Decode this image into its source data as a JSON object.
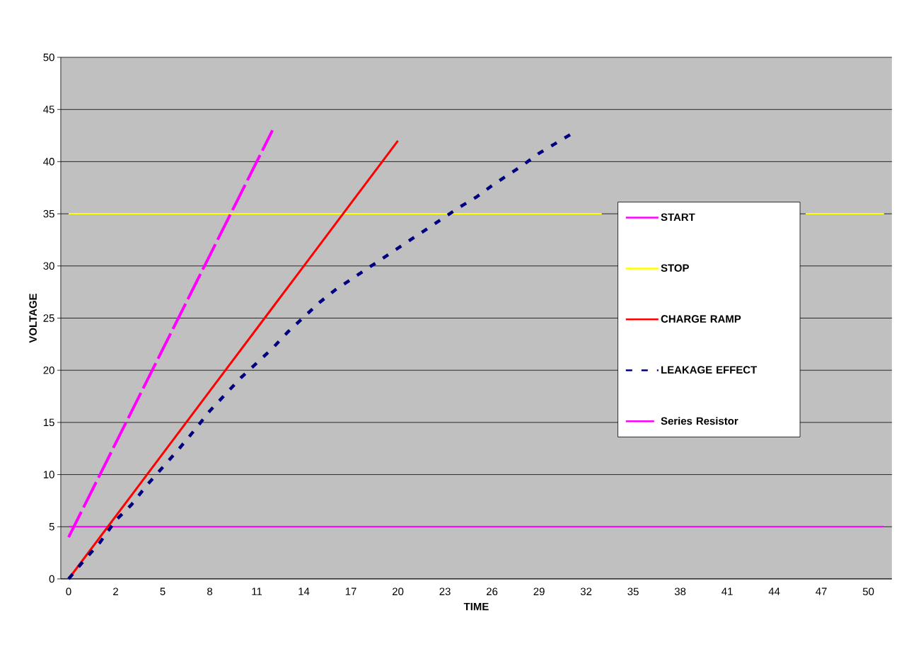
{
  "chart_data": {
    "type": "line",
    "xlabel": "TIME",
    "ylabel": "VOLTAGE",
    "categories": [
      "0",
      null,
      null,
      "2",
      null,
      null,
      "5",
      null,
      null,
      "8",
      null,
      null,
      "11",
      null,
      null,
      "14",
      null,
      null,
      "17",
      null,
      null,
      "20",
      null,
      null,
      "23",
      null,
      null,
      "26",
      null,
      null,
      "29",
      null,
      null,
      "32",
      null,
      null,
      "35",
      null,
      null,
      "38",
      null,
      null,
      "41",
      null,
      null,
      "44",
      null,
      null,
      "47",
      null,
      null,
      "50",
      null
    ],
    "ylim": [
      0,
      50
    ],
    "yticks": [
      0,
      5,
      10,
      15,
      20,
      25,
      30,
      35,
      40,
      45,
      50
    ],
    "grid": "y",
    "legend": "right",
    "marker": "none",
    "series": [
      {
        "name": "START",
        "color": "#ff00ff",
        "line_style": "solid",
        "values": [
          5,
          5,
          5,
          5,
          5,
          5,
          5,
          5,
          5,
          5,
          5,
          5,
          5,
          5,
          5,
          5,
          5,
          5,
          5,
          5,
          5,
          5,
          5,
          5,
          5,
          5,
          5,
          5,
          5,
          5,
          5,
          5,
          5,
          5,
          5,
          5,
          5,
          5,
          5,
          5,
          5,
          5,
          5,
          5,
          5,
          5,
          5,
          5,
          5,
          5,
          5,
          5,
          5
        ]
      },
      {
        "name": "STOP",
        "color": "#ffff00",
        "line_style": "solid",
        "values": [
          35,
          35,
          35,
          35,
          35,
          35,
          35,
          35,
          35,
          35,
          35,
          35,
          35,
          35,
          35,
          35,
          35,
          35,
          35,
          35,
          35,
          35,
          35,
          35,
          35,
          35,
          35,
          35,
          35,
          35,
          35,
          35,
          35,
          35,
          35,
          null,
          null,
          null,
          null,
          null,
          null,
          null,
          null,
          null,
          null,
          null,
          null,
          35,
          35,
          35,
          35,
          35,
          35
        ]
      },
      {
        "name": "CHARGE RAMP",
        "color": "#ff0000",
        "line_style": "solid",
        "values": [
          0,
          2,
          4,
          6,
          8,
          10,
          12,
          14,
          16,
          18,
          20,
          22,
          24,
          26,
          28,
          30,
          32,
          34,
          36,
          38,
          40,
          42,
          null,
          null,
          null,
          null,
          null,
          null,
          null,
          null,
          null,
          null,
          null,
          null,
          null,
          null,
          null,
          null,
          null,
          null,
          null,
          null,
          null,
          null,
          null,
          null,
          null,
          null,
          null,
          null,
          null,
          null,
          null
        ]
      },
      {
        "name": "LEAKAGE EFFECT",
        "color": "#000080",
        "line_style": "dotted",
        "values": [
          0,
          1.8,
          3.5,
          5.6,
          7.1,
          9.0,
          10.7,
          12.4,
          14.2,
          16.1,
          17.7,
          19.3,
          20.7,
          22.1,
          23.7,
          25.1,
          26.5,
          27.7,
          28.7,
          29.7,
          30.7,
          31.7,
          32.7,
          33.7,
          34.7,
          35.7,
          36.6,
          37.7,
          38.7,
          39.7,
          40.8,
          41.7,
          42.6,
          null,
          null,
          null,
          null,
          null,
          null,
          null,
          null,
          null,
          null,
          null,
          null,
          null,
          null,
          null,
          null,
          null,
          null,
          null,
          null
        ]
      },
      {
        "name": "Series Resistor",
        "color": "#ff00ff",
        "line_style": "dashed",
        "values": [
          4,
          7,
          10,
          13,
          16,
          19,
          22,
          25,
          28,
          31,
          34,
          37,
          40,
          43,
          null,
          null,
          null,
          null,
          null,
          null,
          null,
          null,
          null,
          null,
          null,
          null,
          null,
          null,
          null,
          null,
          null,
          null,
          null,
          null,
          null,
          null,
          null,
          null,
          null,
          null,
          null,
          null,
          null,
          null,
          null,
          null,
          null,
          null,
          null,
          null,
          null,
          null,
          null
        ]
      }
    ]
  }
}
